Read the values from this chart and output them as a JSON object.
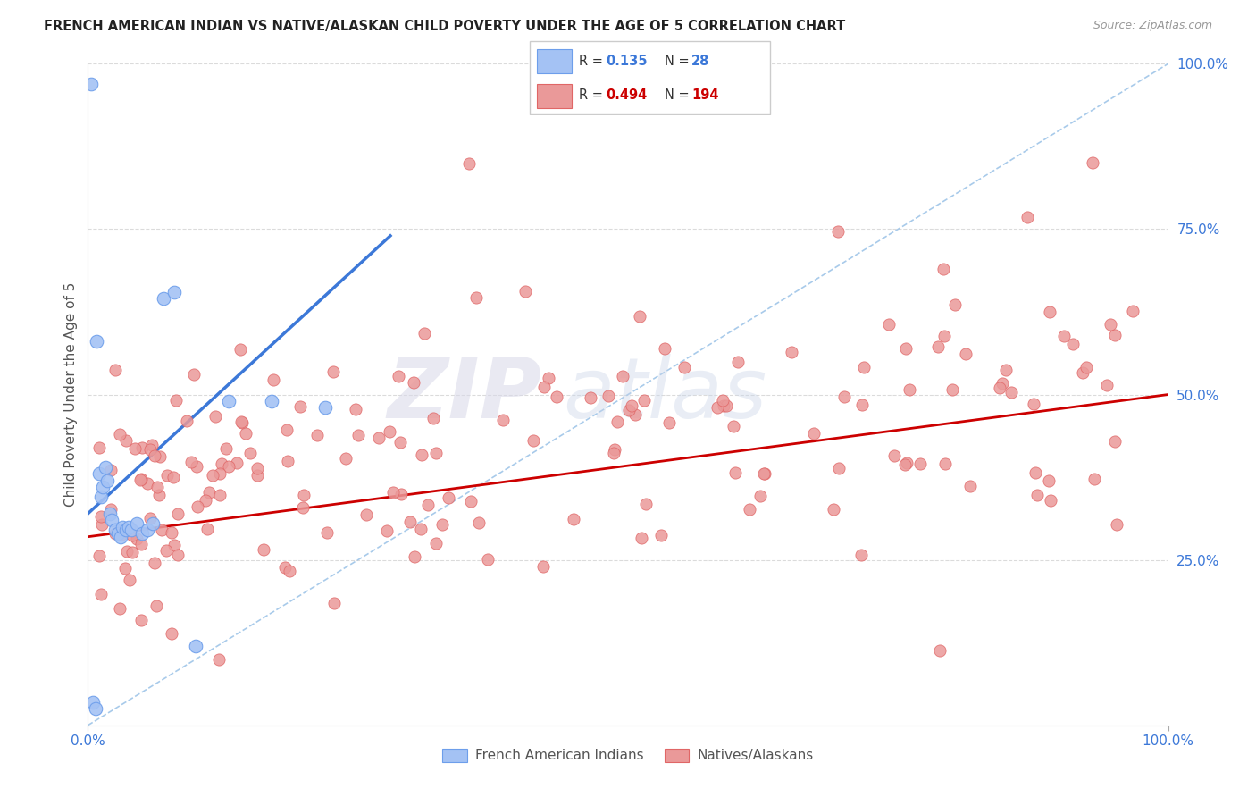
{
  "title": "FRENCH AMERICAN INDIAN VS NATIVE/ALASKAN CHILD POVERTY UNDER THE AGE OF 5 CORRELATION CHART",
  "source": "Source: ZipAtlas.com",
  "ylabel": "Child Poverty Under the Age of 5",
  "xlim": [
    0,
    1
  ],
  "ylim": [
    0,
    1
  ],
  "blue_color": "#a4c2f4",
  "blue_edge_color": "#6d9eeb",
  "pink_color": "#ea9999",
  "pink_edge_color": "#e06666",
  "blue_line_color": "#3c78d8",
  "pink_line_color": "#cc0000",
  "dashed_line_color": "#9fc5e8",
  "watermark_zip": "ZIP",
  "watermark_atlas": "atlas",
  "blue_R": 0.135,
  "blue_N": 28,
  "pink_R": 0.494,
  "pink_N": 194,
  "r_label_color": "#000000",
  "n_label_color": "#3c78d8",
  "n_pink_label_color": "#cc0000",
  "tick_color": "#3c78d8",
  "ylabel_color": "#555555",
  "title_color": "#222222",
  "source_color": "#999999",
  "grid_color": "#cccccc",
  "legend_border_color": "#cccccc"
}
